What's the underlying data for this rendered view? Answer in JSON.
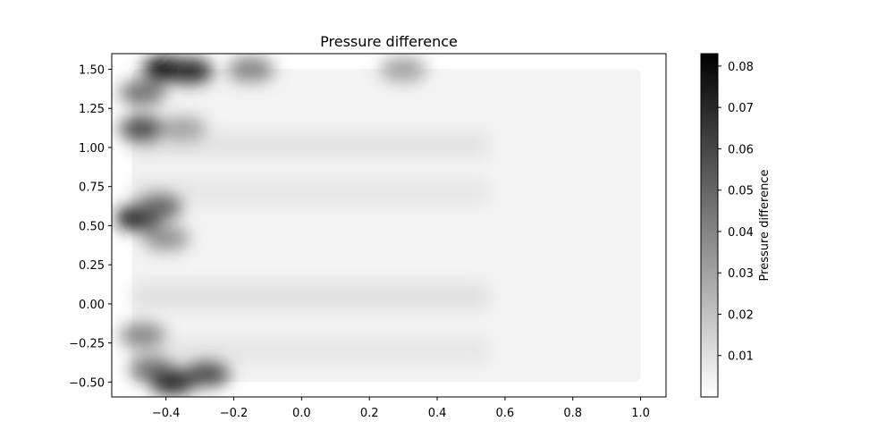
{
  "chart_data": {
    "type": "heatmap",
    "title": "Pressure difference",
    "xlabel": "",
    "ylabel": "",
    "xlim": [
      -0.56,
      1.075
    ],
    "ylim": [
      -0.595,
      1.6
    ],
    "xticks": [
      -0.4,
      -0.2,
      0.0,
      0.2,
      0.4,
      0.6,
      0.8,
      1.0
    ],
    "xtick_labels": [
      "−0.4",
      "−0.2",
      "0.0",
      "0.2",
      "0.4",
      "0.6",
      "0.8",
      "1.0"
    ],
    "yticks": [
      -0.5,
      -0.25,
      0.0,
      0.25,
      0.5,
      0.75,
      1.0,
      1.25,
      1.5
    ],
    "ytick_labels": [
      "−0.50",
      "−0.25",
      "0.00",
      "0.25",
      "0.50",
      "0.75",
      "1.00",
      "1.25",
      "1.50"
    ],
    "data_extent": {
      "x": [
        -0.5,
        1.0
      ],
      "y": [
        -0.5,
        1.5
      ]
    },
    "colormap": "Greys",
    "colormap_colors": [
      "#ffffff",
      "#000000"
    ],
    "grid": false,
    "colorbar": {
      "label": "Pressure difference",
      "range": [
        0.0,
        0.083
      ],
      "ticks": [
        0.01,
        0.02,
        0.03,
        0.04,
        0.05,
        0.06,
        0.07,
        0.08
      ],
      "tick_labels": [
        "0.01",
        "0.02",
        "0.03",
        "0.04",
        "0.05",
        "0.06",
        "0.07",
        "0.08"
      ]
    },
    "hotspots": [
      {
        "x": -0.4,
        "y": 1.5,
        "value": 0.083
      },
      {
        "x": -0.33,
        "y": 1.49,
        "value": 0.07
      },
      {
        "x": -0.47,
        "y": 1.35,
        "value": 0.045
      },
      {
        "x": -0.47,
        "y": 1.12,
        "value": 0.058
      },
      {
        "x": -0.35,
        "y": 1.12,
        "value": 0.03
      },
      {
        "x": -0.48,
        "y": 0.55,
        "value": 0.075
      },
      {
        "x": -0.42,
        "y": 0.62,
        "value": 0.05
      },
      {
        "x": -0.4,
        "y": 0.42,
        "value": 0.035
      },
      {
        "x": -0.47,
        "y": -0.2,
        "value": 0.038
      },
      {
        "x": -0.44,
        "y": -0.42,
        "value": 0.045
      },
      {
        "x": -0.38,
        "y": -0.5,
        "value": 0.07
      },
      {
        "x": -0.28,
        "y": -0.45,
        "value": 0.058
      },
      {
        "x": -0.15,
        "y": 1.5,
        "value": 0.04
      },
      {
        "x": 0.3,
        "y": 1.5,
        "value": 0.03
      }
    ]
  }
}
